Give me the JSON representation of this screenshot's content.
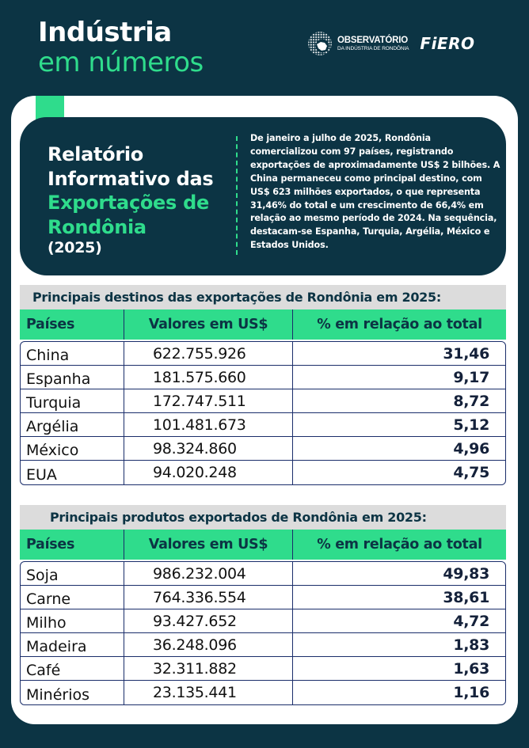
{
  "header": {
    "title_line1": "Indústria",
    "title_line2": "em números",
    "logo_observatorio_name": "OBSERVATÓRIO",
    "logo_observatorio_sub": "DA INDÚSTRIA DE RONDÔNIA",
    "logo_fiero": "FiERO"
  },
  "colors": {
    "background": "#0c3444",
    "accent_green": "#2fdc8c",
    "table_title_bg": "#dcdcdc",
    "table_border": "#1a2d6a"
  },
  "intro": {
    "title_line1": "Relatório",
    "title_line2": "Informativo das",
    "title_line3": "Exportações de",
    "title_line4": "Rondônia",
    "year": "(2025)",
    "summary": "De janeiro a julho de 2025, Rondônia comercializou com 97 países, registrando exportações de aproximadamente US$ 2 bilhões. A China permaneceu como principal destino, com US$ 623 milhões exportados, o que representa 31,46% do total e um crescimento de 66,4% em relação ao mesmo período de 2024. Na sequência, destacam-se Espanha, Turquia, Argélia, México e Estados Unidos."
  },
  "destinations_table": {
    "title": "Principais destinos das exportações de Rondônia em 2025:",
    "headers": [
      "Países",
      "Valores em US$",
      "% em relação ao total"
    ],
    "rows": [
      {
        "name": "China",
        "value": "622.755.926",
        "percent": "31,46"
      },
      {
        "name": "Espanha",
        "value": "181.575.660",
        "percent": "9,17"
      },
      {
        "name": "Turquia",
        "value": "172.747.511",
        "percent": "8,72"
      },
      {
        "name": "Argélia",
        "value": "101.481.673",
        "percent": "5,12"
      },
      {
        "name": "México",
        "value": "98.324.860",
        "percent": "4,96"
      },
      {
        "name": "EUA",
        "value": "94.020.248",
        "percent": "4,75"
      }
    ]
  },
  "products_table": {
    "title": "Principais produtos exportados de Rondônia em 2025:",
    "headers": [
      "Países",
      "Valores em US$",
      "% em relação ao total"
    ],
    "rows": [
      {
        "name": "Soja",
        "value": "986.232.004",
        "percent": "49,83"
      },
      {
        "name": "Carne",
        "value": "764.336.554",
        "percent": "38,61"
      },
      {
        "name": "Milho",
        "value": "93.427.652",
        "percent": "4,72"
      },
      {
        "name": "Madeira",
        "value": "36.248.096",
        "percent": "1,83"
      },
      {
        "name": "Café",
        "value": "32.311.882",
        "percent": "1,63"
      },
      {
        "name": "Minérios",
        "value": "23.135.441",
        "percent": "1,16"
      }
    ]
  }
}
